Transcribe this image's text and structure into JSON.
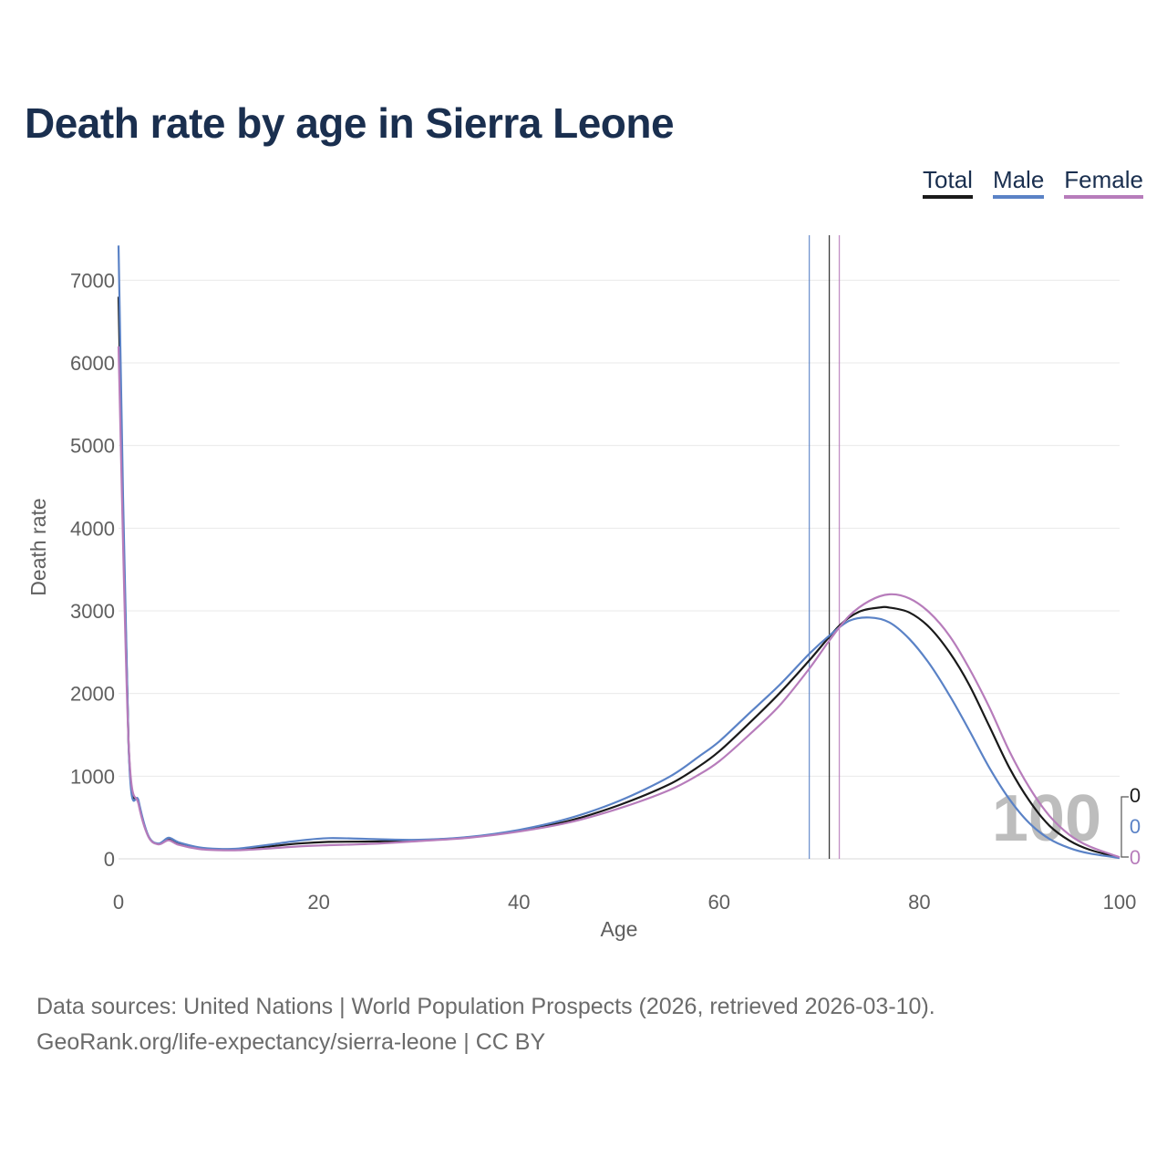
{
  "title": "Death rate by age in Sierra Leone",
  "legend": [
    {
      "label": "Total",
      "color": "#1a1a1a"
    },
    {
      "label": "Male",
      "color": "#5a82c6"
    },
    {
      "label": "Female",
      "color": "#b77cbb"
    }
  ],
  "footer": {
    "line1": "Data sources: United Nations | World Population Prospects (2026, retrieved 2026-03-10).",
    "line2": "GeoRank.org/life-expectancy/sierra-leone | CC BY"
  },
  "chart_data": {
    "type": "line",
    "title": "Death rate by age in Sierra Leone",
    "xlabel": "Age",
    "ylabel": "Death rate",
    "xlim": [
      0,
      100
    ],
    "ylim": [
      0,
      7500
    ],
    "xticks": [
      0,
      20,
      40,
      60,
      80,
      100
    ],
    "yticks": [
      0,
      1000,
      2000,
      3000,
      4000,
      5000,
      6000,
      7000
    ],
    "grid": true,
    "overlay_label": "100",
    "end_labels": [
      "0",
      "0",
      "0"
    ],
    "reference_lines": [
      {
        "series": "Male",
        "x": 69
      },
      {
        "series": "Total",
        "x": 71
      },
      {
        "series": "Female",
        "x": 72
      }
    ],
    "series": [
      {
        "name": "Total",
        "color": "#1a1a1a",
        "points": [
          [
            0,
            6800
          ],
          [
            1,
            1400
          ],
          [
            2,
            680
          ],
          [
            3,
            270
          ],
          [
            4,
            180
          ],
          [
            5,
            240
          ],
          [
            6,
            185
          ],
          [
            8,
            130
          ],
          [
            10,
            115
          ],
          [
            12,
            120
          ],
          [
            15,
            150
          ],
          [
            18,
            185
          ],
          [
            21,
            205
          ],
          [
            25,
            210
          ],
          [
            30,
            225
          ],
          [
            35,
            260
          ],
          [
            40,
            340
          ],
          [
            45,
            460
          ],
          [
            50,
            650
          ],
          [
            55,
            900
          ],
          [
            58,
            1120
          ],
          [
            60,
            1300
          ],
          [
            63,
            1640
          ],
          [
            66,
            2000
          ],
          [
            69,
            2400
          ],
          [
            72,
            2820
          ],
          [
            74,
            2990
          ],
          [
            76,
            3040
          ],
          [
            77,
            3040
          ],
          [
            79,
            2980
          ],
          [
            81,
            2800
          ],
          [
            83,
            2500
          ],
          [
            85,
            2100
          ],
          [
            87,
            1600
          ],
          [
            89,
            1100
          ],
          [
            91,
            700
          ],
          [
            93,
            400
          ],
          [
            95,
            220
          ],
          [
            97,
            110
          ],
          [
            100,
            15
          ]
        ]
      },
      {
        "name": "Male",
        "color": "#5a82c6",
        "points": [
          [
            0,
            7420
          ],
          [
            1,
            1380
          ],
          [
            2,
            700
          ],
          [
            3,
            275
          ],
          [
            4,
            185
          ],
          [
            5,
            255
          ],
          [
            6,
            200
          ],
          [
            8,
            140
          ],
          [
            10,
            120
          ],
          [
            12,
            125
          ],
          [
            15,
            170
          ],
          [
            18,
            220
          ],
          [
            21,
            250
          ],
          [
            25,
            240
          ],
          [
            30,
            230
          ],
          [
            35,
            265
          ],
          [
            40,
            350
          ],
          [
            45,
            490
          ],
          [
            50,
            700
          ],
          [
            55,
            990
          ],
          [
            58,
            1240
          ],
          [
            60,
            1420
          ],
          [
            63,
            1760
          ],
          [
            66,
            2100
          ],
          [
            69,
            2480
          ],
          [
            71,
            2700
          ],
          [
            73,
            2880
          ],
          [
            75,
            2920
          ],
          [
            77,
            2860
          ],
          [
            79,
            2660
          ],
          [
            81,
            2360
          ],
          [
            83,
            1980
          ],
          [
            85,
            1550
          ],
          [
            87,
            1100
          ],
          [
            89,
            720
          ],
          [
            91,
            430
          ],
          [
            93,
            240
          ],
          [
            95,
            130
          ],
          [
            97,
            65
          ],
          [
            100,
            10
          ]
        ]
      },
      {
        "name": "Female",
        "color": "#b77cbb",
        "points": [
          [
            0,
            6200
          ],
          [
            1,
            1420
          ],
          [
            2,
            660
          ],
          [
            3,
            265
          ],
          [
            4,
            175
          ],
          [
            5,
            225
          ],
          [
            6,
            170
          ],
          [
            8,
            120
          ],
          [
            10,
            105
          ],
          [
            12,
            105
          ],
          [
            15,
            125
          ],
          [
            18,
            150
          ],
          [
            21,
            165
          ],
          [
            25,
            180
          ],
          [
            30,
            215
          ],
          [
            35,
            255
          ],
          [
            40,
            330
          ],
          [
            45,
            440
          ],
          [
            50,
            610
          ],
          [
            55,
            830
          ],
          [
            58,
            1020
          ],
          [
            60,
            1180
          ],
          [
            63,
            1500
          ],
          [
            66,
            1850
          ],
          [
            69,
            2300
          ],
          [
            71,
            2640
          ],
          [
            73,
            2940
          ],
          [
            75,
            3120
          ],
          [
            77,
            3200
          ],
          [
            79,
            3150
          ],
          [
            81,
            2980
          ],
          [
            83,
            2700
          ],
          [
            85,
            2300
          ],
          [
            87,
            1830
          ],
          [
            89,
            1300
          ],
          [
            91,
            860
          ],
          [
            93,
            520
          ],
          [
            95,
            290
          ],
          [
            97,
            150
          ],
          [
            100,
            20
          ]
        ]
      }
    ]
  }
}
